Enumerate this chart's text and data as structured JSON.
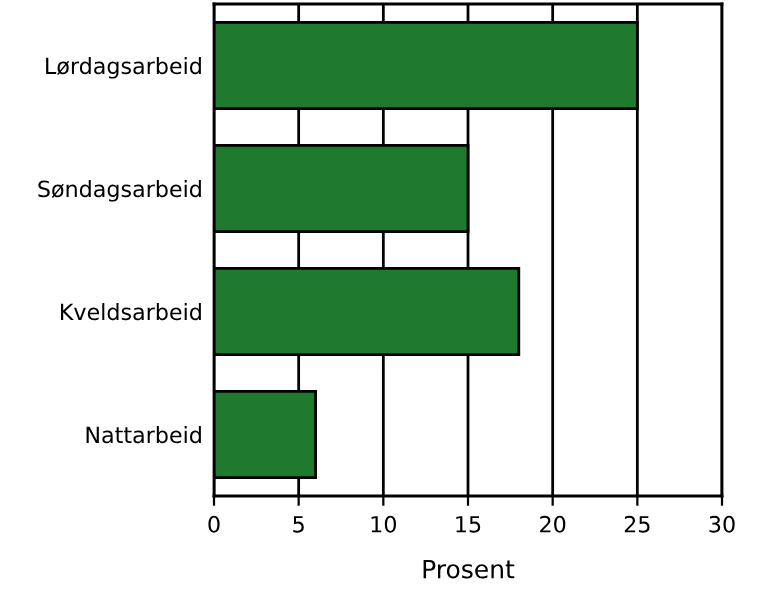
{
  "chart_data": {
    "type": "bar",
    "orientation": "horizontal",
    "xlabel": "Prosent",
    "categories": [
      "Lørdagsarbeid",
      "Søndagsarbeid",
      "Kveldsarbeid",
      "Nattarbeid"
    ],
    "values": [
      25,
      15,
      18,
      6
    ],
    "color": "#1f7a2e",
    "xlim": [
      0,
      30
    ],
    "xticks": [
      0,
      5,
      10,
      15,
      20,
      25,
      30
    ],
    "grid": "x"
  }
}
